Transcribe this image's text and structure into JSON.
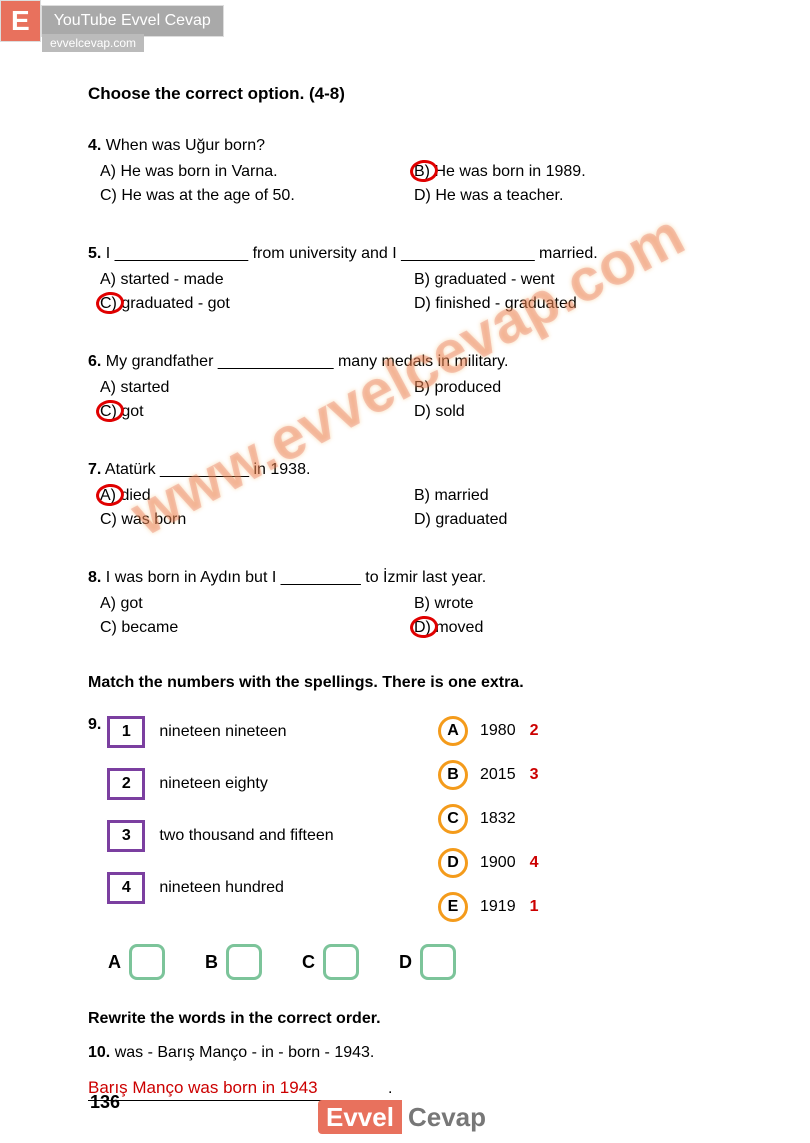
{
  "header": {
    "logo": "E",
    "tab1": "YouTube Evvel Cevap",
    "tab2": "evvelcevap.com"
  },
  "sectionTitle": "Choose the correct option. (4-8)",
  "questions": [
    {
      "num": "4.",
      "text": "When was Uğur born?",
      "opts": {
        "a": "A) He was born in Varna.",
        "b": "B) He was born in 1989.",
        "c": "C) He was at the age of 50.",
        "d": "D) He was a teacher."
      },
      "correct": "b"
    },
    {
      "num": "5.",
      "text": "I _______________ from university and I _______________ married.",
      "opts": {
        "a": "A) started - made",
        "b": "B) graduated - went",
        "c": "C) graduated - got",
        "d": "D) finished - graduated"
      },
      "correct": "c"
    },
    {
      "num": "6.",
      "text": "My grandfather _____________ many medals in military.",
      "opts": {
        "a": "A) started",
        "b": "B) produced",
        "c": "C) got",
        "d": "D) sold"
      },
      "correct": "c"
    },
    {
      "num": "7.",
      "text": "Atatürk __________ in 1938.",
      "opts": {
        "a": "A) died",
        "b": "B) married",
        "c": "C) was born",
        "d": "D) graduated"
      },
      "correct": "a"
    },
    {
      "num": "8.",
      "text": "I was born in Aydın but I _________ to İzmir last year.",
      "opts": {
        "a": "A) got",
        "b": "B) wrote",
        "c": "C) became",
        "d": "D) moved"
      },
      "correct": "d"
    }
  ],
  "matchTitle": "Match the numbers with the spellings. There is one extra.",
  "q9": {
    "num": "9.",
    "left": [
      {
        "n": "1",
        "text": "nineteen nineteen"
      },
      {
        "n": "2",
        "text": "nineteen eighty"
      },
      {
        "n": "3",
        "text": "two thousand and fifteen"
      },
      {
        "n": "4",
        "text": "nineteen hundred"
      }
    ],
    "right": [
      {
        "l": "A",
        "year": "1980",
        "ans": "2"
      },
      {
        "l": "B",
        "year": "2015",
        "ans": "3"
      },
      {
        "l": "C",
        "year": "1832",
        "ans": ""
      },
      {
        "l": "D",
        "year": "1900",
        "ans": "4"
      },
      {
        "l": "E",
        "year": "1919",
        "ans": "1"
      }
    ],
    "boxes": [
      "A",
      "B",
      "C",
      "D"
    ]
  },
  "rewriteTitle": "Rewrite the words in the correct order.",
  "q10": {
    "num": "10.",
    "text": "was - Barış Manço - in - born - 1943.",
    "answer": "Barış Manço was born in 1943"
  },
  "pageNumber": "136",
  "footer": {
    "evvel": "Evvel",
    "cevap": "Cevap"
  },
  "watermark": "www.evvelcevap.com"
}
